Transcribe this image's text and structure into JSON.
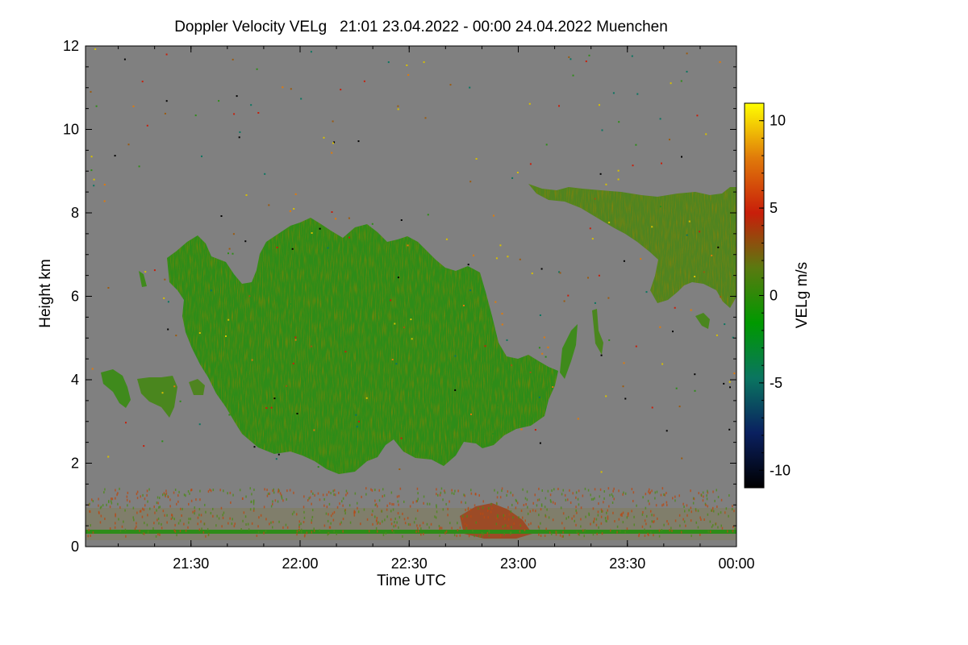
{
  "chart_data": {
    "type": "heatmap",
    "title": "Doppler Velocity VELg   21:01 23.04.2022 - 00:00 24.04.2022 Muenchen",
    "xlabel": "Time UTC",
    "ylabel": "Height km",
    "x_ticks": [
      "21:30",
      "22:00",
      "22:30",
      "23:00",
      "23:30",
      "00:00"
    ],
    "x_range": [
      "21:01",
      "00:00"
    ],
    "y_ticks": [
      0,
      2,
      4,
      6,
      8,
      10,
      12
    ],
    "ylim": [
      0,
      12
    ],
    "colorbar": {
      "label": "VELg m/s",
      "ticks": [
        10,
        5,
        0,
        -5,
        -10
      ],
      "range": [
        -11,
        11
      ],
      "colors": [
        "#000000",
        "#0a2060",
        "#0a7560",
        "#009900",
        "#5a7a10",
        "#c81e0a",
        "#e07a0a",
        "#ffff00"
      ]
    },
    "background_color": "#808080",
    "features": [
      {
        "name": "main-cloud",
        "time_range": [
          "21:20",
          "23:10"
        ],
        "height_range_km": [
          1.7,
          7.9
        ],
        "velocity_ms": -1.5
      },
      {
        "name": "upper-cloud",
        "time_range": [
          "23:05",
          "00:00"
        ],
        "height_range_km": [
          5.8,
          8.7
        ],
        "velocity_ms": 0
      },
      {
        "name": "boundary-layer",
        "time_range": [
          "21:01",
          "00:00"
        ],
        "height_range_km": [
          0.1,
          0.9
        ],
        "velocity_ms": 1
      }
    ]
  }
}
